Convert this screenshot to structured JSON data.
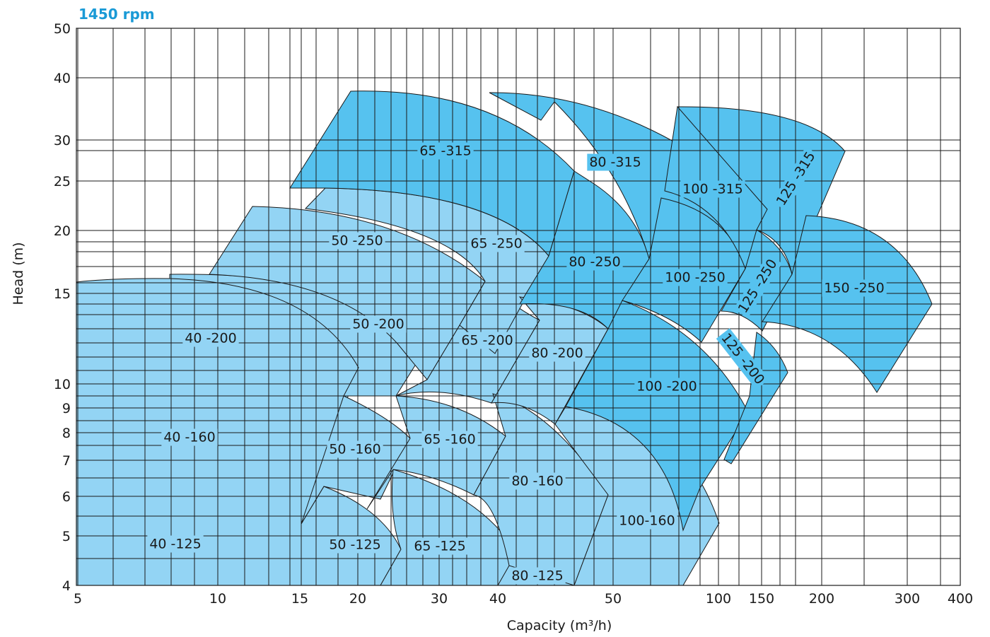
{
  "chart_data": {
    "type": "area",
    "title": "1450 rpm",
    "xlabel": "Capacity (m³/h)",
    "ylabel": "Head (m)",
    "x_ticks": [
      "5",
      "10",
      "15",
      "20",
      "30",
      "40",
      "50",
      "100",
      "150",
      "200",
      "300",
      "400"
    ],
    "y_ticks": [
      "4",
      "5",
      "6",
      "7",
      "8",
      "9",
      "10",
      "15",
      "20",
      "25",
      "30",
      "40",
      "50"
    ],
    "series": [
      {
        "name": "40 -125",
        "color": "#93d4f4"
      },
      {
        "name": "40 -160",
        "color": "#93d4f4"
      },
      {
        "name": "40 -200",
        "color": "#93d4f4"
      },
      {
        "name": "50 -125",
        "color": "#93d4f4"
      },
      {
        "name": "50 -160",
        "color": "#93d4f4"
      },
      {
        "name": "50 -200",
        "color": "#93d4f4"
      },
      {
        "name": "50 -250",
        "color": "#93d4f4"
      },
      {
        "name": "65 -125",
        "color": "#93d4f4"
      },
      {
        "name": "65 -160",
        "color": "#93d4f4"
      },
      {
        "name": "65 -200",
        "color": "#93d4f4"
      },
      {
        "name": "65 -250",
        "color": "#93d4f4"
      },
      {
        "name": "65 -315",
        "color": "#56c2ef"
      },
      {
        "name": "80 -125",
        "color": "#93d4f4"
      },
      {
        "name": "80 -160",
        "color": "#93d4f4"
      },
      {
        "name": "80 -200",
        "color": "#93d4f4"
      },
      {
        "name": "80 -250",
        "color": "#56c2ef"
      },
      {
        "name": "80 -315",
        "color": "#56c2ef"
      },
      {
        "name": "100-160",
        "color": "#93d4f4"
      },
      {
        "name": "100  -200",
        "color": "#56c2ef"
      },
      {
        "name": "100  -250",
        "color": "#56c2ef"
      },
      {
        "name": "100  -315",
        "color": "#56c2ef"
      },
      {
        "name": "125 -200",
        "color": "#56c2ef"
      },
      {
        "name": "125 -250",
        "color": "#56c2ef"
      },
      {
        "name": "125 -315",
        "color": "#56c2ef"
      },
      {
        "name": "150  -250",
        "color": "#56c2ef"
      }
    ]
  }
}
